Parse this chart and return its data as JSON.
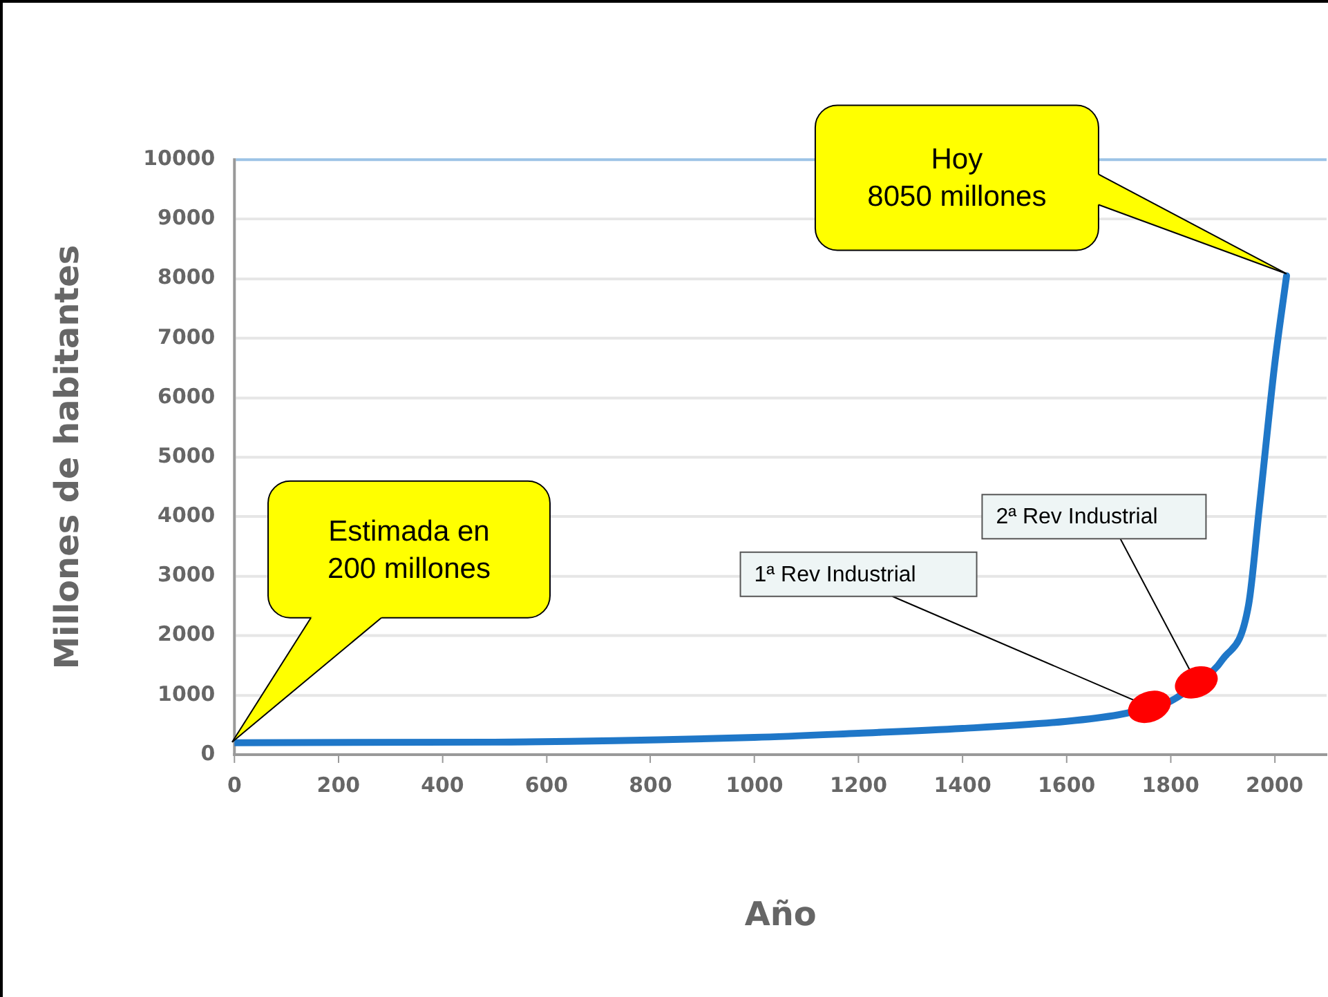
{
  "chart_data": {
    "type": "line",
    "xlabel": "Año",
    "ylabel": "Millones de habitantes",
    "series": [
      {
        "color": "#1f77c8",
        "x": [
          0,
          500,
          1000,
          1200,
          1400,
          1600,
          1700,
          1760,
          1800,
          1850,
          1900,
          1950,
          1970,
          2000,
          2023
        ],
        "values": [
          200,
          210,
          290,
          360,
          440,
          560,
          670,
          790,
          900,
          1200,
          1600,
          2520,
          4100,
          6550,
          8050
        ]
      }
    ],
    "xlim": [
      0,
      2100
    ],
    "xticks": [
      0,
      200,
      400,
      600,
      800,
      1000,
      1200,
      1400,
      1600,
      1800,
      2000
    ],
    "ylim": [
      0,
      10000
    ],
    "yticks": [
      0,
      1000,
      2000,
      3000,
      4000,
      5000,
      6000,
      7000,
      8000,
      9000,
      10000
    ],
    "grid": "y",
    "legend": false,
    "marker": "none",
    "line_style": "solid",
    "annotations": [
      {
        "text": "Hoy\n8050 millones",
        "x": 2023,
        "y": 8050
      },
      {
        "text": "Estimada en\n200 millones",
        "x": 0,
        "y": 200
      },
      {
        "text": "1ª Rev Industrial",
        "x": 1760,
        "y": 790
      },
      {
        "text": "2ª Rev Industrial",
        "x": 1850,
        "y": 1200
      }
    ]
  }
}
